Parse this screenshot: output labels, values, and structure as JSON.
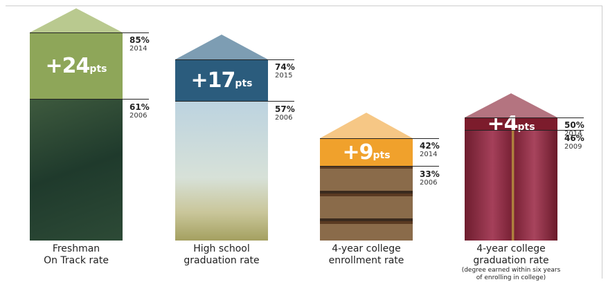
{
  "columns": [
    {
      "change": "+24",
      "unit": "pts",
      "top_value": "85%",
      "top_year": "2014",
      "bottom_value": "61%",
      "bottom_year": "2006",
      "label": [
        "Freshman",
        "On Track rate"
      ]
    },
    {
      "change": "+17",
      "unit": "pts",
      "top_value": "74%",
      "top_year": "2015",
      "bottom_value": "57%",
      "bottom_year": "2006",
      "label": [
        "High school",
        "graduation rate"
      ]
    },
    {
      "change": "+9",
      "unit": "pts",
      "top_value": "42%",
      "top_year": "2014",
      "bottom_value": "33%",
      "bottom_year": "2006",
      "label": [
        "4-year college",
        "enrollment rate"
      ]
    },
    {
      "change": "+4",
      "unit": "pts",
      "top_value": "50%",
      "top_year": "2014",
      "bottom_value": "46%",
      "bottom_year": "2009",
      "label": [
        "4-year college",
        "graduation rate"
      ],
      "note": [
        "(degree earned within six years",
        "of enrolling in college)"
      ]
    }
  ]
}
